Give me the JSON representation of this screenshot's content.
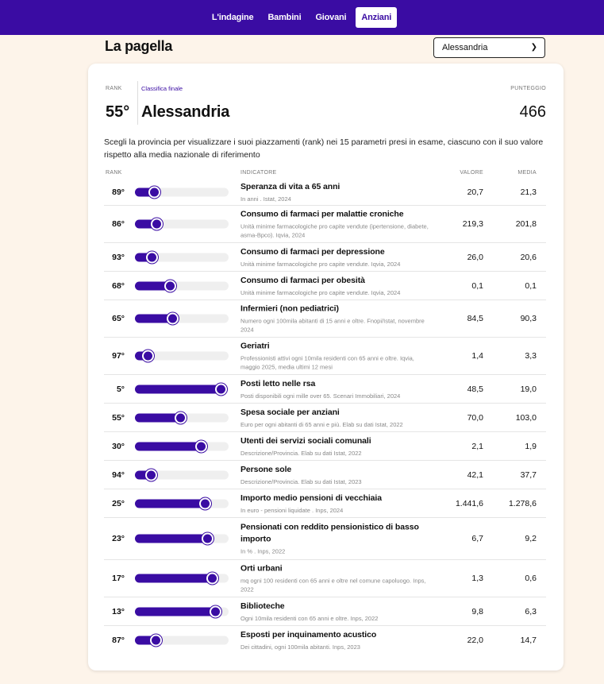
{
  "nav": {
    "tabs": [
      {
        "label": "L'indagine",
        "active": false
      },
      {
        "label": "Bambini",
        "active": false
      },
      {
        "label": "Giovani",
        "active": false
      },
      {
        "label": "Anziani",
        "active": true
      }
    ]
  },
  "page_title": "La pagella",
  "province_select": {
    "value": "Alessandria"
  },
  "summary": {
    "rank_label": "RANK",
    "classifica_label": "Classifica finale",
    "punteggio_label": "PUNTEGGIO",
    "rank": "55°",
    "province": "Alessandria",
    "score": "466"
  },
  "intro": "Scegli la provincia per visualizzare i suoi piazzamenti (rank) nei 15 parametri presi in esame, ciascuno con il suo valore rispetto alla media nazionale di riferimento",
  "table": {
    "headers": {
      "rank": "RANK",
      "indicator": "INDICATORE",
      "value": "VALORE",
      "media": "MEDIA"
    },
    "rows": [
      {
        "rank": "89°",
        "position": 0.18,
        "name": "Speranza di vita a 65 anni",
        "source": "In anni . Istat, 2024",
        "value": "20,7",
        "media": "21,3"
      },
      {
        "rank": "86°",
        "position": 0.21,
        "name": "Consumo di farmaci per malattie croniche",
        "source": "Unità minime farmacologiche pro capite vendute (ipertensione, diabete, asma-Bpco). Iqvia, 2024",
        "value": "219,3",
        "media": "201,8"
      },
      {
        "rank": "93°",
        "position": 0.15,
        "name": "Consumo di farmaci per depressione",
        "source": "Unità minime farmacologiche pro capite vendute. Iqvia, 2024",
        "value": "26,0",
        "media": "20,6"
      },
      {
        "rank": "68°",
        "position": 0.36,
        "name": "Consumo di farmaci per obesità",
        "source": "Unità minime farmacologiche pro capite vendute. Iqvia, 2024",
        "value": "0,1",
        "media": "0,1"
      },
      {
        "rank": "65°",
        "position": 0.39,
        "name": "Infermieri (non pediatrici)",
        "source": "Numero ogni 100mila abitanti di 15 anni e oltre. Fnopi/Istat, novembre 2024",
        "value": "84,5",
        "media": "90,3"
      },
      {
        "rank": "97°",
        "position": 0.1,
        "name": "Geriatri",
        "source": "Professionisti attivi ogni 10mila residenti con 65 anni e oltre. Iqvia, maggio 2025, media ultimi 12 mesi",
        "value": "1,4",
        "media": "3,3"
      },
      {
        "rank": "5°",
        "position": 0.96,
        "name": "Posti letto nelle rsa",
        "source": "Posti disponibili ogni mille over 65. Scenari Immobiliari, 2024",
        "value": "48,5",
        "media": "19,0"
      },
      {
        "rank": "55°",
        "position": 0.49,
        "name": "Spesa sociale per anziani",
        "source": "Euro per ogni abitanti di 65 anni e più. Elab su dati Istat, 2022",
        "value": "70,0",
        "media": "103,0"
      },
      {
        "rank": "30°",
        "position": 0.73,
        "name": "Utenti dei servizi sociali comunali",
        "source": "Descrizione/Provincia. Elab su dati Istat, 2022",
        "value": "2,1",
        "media": "1,9"
      },
      {
        "rank": "94°",
        "position": 0.14,
        "name": "Persone sole",
        "source": "Descrizione/Provincia. Elab su dati Istat, 2023",
        "value": "42,1",
        "media": "37,7"
      },
      {
        "rank": "25°",
        "position": 0.78,
        "name": "Importo medio pensioni di vecchiaia",
        "source": "In euro - pensioni liquidate . Inps, 2024",
        "value": "1.441,6",
        "media": "1.278,6"
      },
      {
        "rank": "23°",
        "position": 0.8,
        "name": "Pensionati con reddito pensionistico di basso importo",
        "source": "In % . Inps, 2022",
        "value": "6,7",
        "media": "9,2"
      },
      {
        "rank": "17°",
        "position": 0.86,
        "name": "Orti urbani",
        "source": "mq ogni 100 residenti con 65 anni e oltre nel comune capoluogo. Inps, 2022",
        "value": "1,3",
        "media": "0,6"
      },
      {
        "rank": "13°",
        "position": 0.9,
        "name": "Biblioteche",
        "source": "Ogni 10mila residenti con 65 anni e oltre. Inps, 2022",
        "value": "9,8",
        "media": "6,3"
      },
      {
        "rank": "87°",
        "position": 0.2,
        "name": "Esposti per inquinamento acustico",
        "source": "Dei cittadini, ogni 100mila abitanti. Inps, 2023",
        "value": "22,0",
        "media": "14,7"
      }
    ]
  },
  "colors": {
    "accent": "#3a0ca3",
    "background": "#fdf4ea"
  }
}
